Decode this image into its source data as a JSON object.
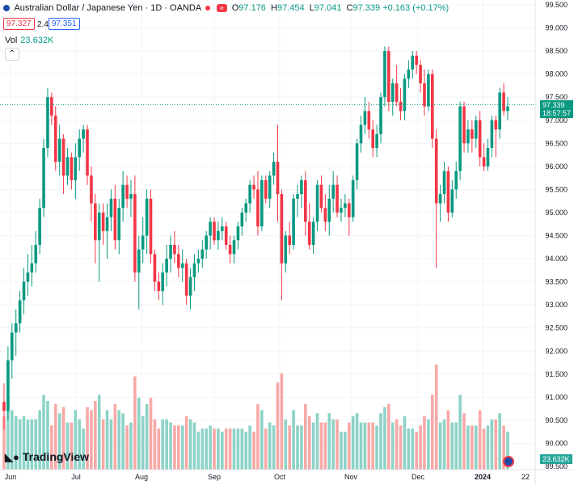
{
  "legend": {
    "symbol_title": "Australian Dollar / Japanese Yen · 1D · OANDA",
    "symbol_icon": "flag-icon",
    "badge": "≈",
    "open_label": "O",
    "open": "97.176",
    "high_label": "H",
    "high": "97.454",
    "low_label": "L",
    "low": "97.041",
    "close_label": "C",
    "close": "97.339",
    "change": "+0.163 (+0.17%)",
    "bid": "97.327",
    "spread": "2.4",
    "ask": "97.351"
  },
  "volume": {
    "label": "Vol",
    "value": "23.632K"
  },
  "price_axis": {
    "labels": [
      "99.500",
      "99.000",
      "98.500",
      "98.000",
      "97.500",
      "97.000",
      "96.500",
      "96.000",
      "95.500",
      "95.000",
      "94.500",
      "94.000",
      "93.500",
      "93.000",
      "92.500",
      "92.000",
      "91.500",
      "91.000",
      "90.500",
      "90.000",
      "89.500"
    ],
    "current_price": "97.339",
    "countdown": "18:57:57",
    "volume_tag": "23.632K"
  },
  "time_axis": {
    "labels": [
      "Jun",
      "Jul",
      "Aug",
      "Sep",
      "Oct",
      "Nov",
      "Dec",
      "2024",
      "22"
    ]
  },
  "logo": {
    "text": "TradingView",
    "icon": "tradingview-logo-icon"
  },
  "colors": {
    "up": "#089981",
    "down": "#f23645",
    "up_vol": "#8dd3c7",
    "down_vol": "#f7a9a7",
    "grid": "#f0f3fa"
  },
  "chart_data": {
    "type": "candlestick",
    "title": "Australian Dollar / Japanese Yen · 1D · OANDA",
    "ylim": [
      89.5,
      99.5
    ],
    "ohlc": [
      [
        90.9,
        91.3,
        90.3,
        90.7
      ],
      [
        90.7,
        92.1,
        90.5,
        91.8
      ],
      [
        91.8,
        92.6,
        91.4,
        92.4
      ],
      [
        92.4,
        92.9,
        91.9,
        92.6
      ],
      [
        92.6,
        93.3,
        92.4,
        93.1
      ],
      [
        93.1,
        93.8,
        92.8,
        93.5
      ],
      [
        93.5,
        94.1,
        93.2,
        93.7
      ],
      [
        93.7,
        94.3,
        93.4,
        93.9
      ],
      [
        93.9,
        94.6,
        93.7,
        94.3
      ],
      [
        94.3,
        95.3,
        94.1,
        95.1
      ],
      [
        95.1,
        96.6,
        94.9,
        96.4
      ],
      [
        96.4,
        97.7,
        96.2,
        97.5
      ],
      [
        97.5,
        97.6,
        96.9,
        97.1
      ],
      [
        97.1,
        97.3,
        95.9,
        96.1
      ],
      [
        96.1,
        96.9,
        95.8,
        96.6
      ],
      [
        96.6,
        96.7,
        95.4,
        95.8
      ],
      [
        95.8,
        96.4,
        95.6,
        96.2
      ],
      [
        96.2,
        96.3,
        95.5,
        95.7
      ],
      [
        95.7,
        96.5,
        95.3,
        96.2
      ],
      [
        96.2,
        96.8,
        95.9,
        96.6
      ],
      [
        96.6,
        96.9,
        96.3,
        96.8
      ],
      [
        96.8,
        96.9,
        95.6,
        95.8
      ],
      [
        95.8,
        96.0,
        94.8,
        95.2
      ],
      [
        95.2,
        95.4,
        93.9,
        94.4
      ],
      [
        94.4,
        95.2,
        93.5,
        95.0
      ],
      [
        95.0,
        95.2,
        94.3,
        94.6
      ],
      [
        94.6,
        95.2,
        94.0,
        94.9
      ],
      [
        94.9,
        95.5,
        94.6,
        95.3
      ],
      [
        95.3,
        95.6,
        94.2,
        94.4
      ],
      [
        94.4,
        95.3,
        94.1,
        95.1
      ],
      [
        95.1,
        95.9,
        94.8,
        95.6
      ],
      [
        95.6,
        95.8,
        95.1,
        95.3
      ],
      [
        95.3,
        95.7,
        94.9,
        95.4
      ],
      [
        95.4,
        95.8,
        93.5,
        93.7
      ],
      [
        93.7,
        94.5,
        92.9,
        94.2
      ],
      [
        94.2,
        94.9,
        93.9,
        94.5
      ],
      [
        94.5,
        95.5,
        94.1,
        95.3
      ],
      [
        95.3,
        95.5,
        93.9,
        94.1
      ],
      [
        94.1,
        94.2,
        93.3,
        93.5
      ],
      [
        93.5,
        93.7,
        93.1,
        93.3
      ],
      [
        93.3,
        93.9,
        93.0,
        93.7
      ],
      [
        93.7,
        94.3,
        93.4,
        94.0
      ],
      [
        94.0,
        94.5,
        93.7,
        94.3
      ],
      [
        94.3,
        94.6,
        93.9,
        94.1
      ],
      [
        94.1,
        94.3,
        93.6,
        93.8
      ],
      [
        93.8,
        94.2,
        93.5,
        93.9
      ],
      [
        93.9,
        94.0,
        93.0,
        93.2
      ],
      [
        93.2,
        93.8,
        92.9,
        93.6
      ],
      [
        93.6,
        94.1,
        93.3,
        93.9
      ],
      [
        93.9,
        94.2,
        93.7,
        94.0
      ],
      [
        94.0,
        94.4,
        93.8,
        94.2
      ],
      [
        94.2,
        94.6,
        94.0,
        94.5
      ],
      [
        94.5,
        94.9,
        94.2,
        94.8
      ],
      [
        94.8,
        94.9,
        94.3,
        94.4
      ],
      [
        94.4,
        94.8,
        94.2,
        94.6
      ],
      [
        94.6,
        94.9,
        94.4,
        94.7
      ],
      [
        94.7,
        94.8,
        94.2,
        94.3
      ],
      [
        94.3,
        94.5,
        93.9,
        94.1
      ],
      [
        94.1,
        94.5,
        93.9,
        94.4
      ],
      [
        94.4,
        94.8,
        94.2,
        94.7
      ],
      [
        94.7,
        95.1,
        94.5,
        95.0
      ],
      [
        95.0,
        95.3,
        94.8,
        95.2
      ],
      [
        95.2,
        95.7,
        95.0,
        95.6
      ],
      [
        95.6,
        95.8,
        95.3,
        95.5
      ],
      [
        95.5,
        95.9,
        94.5,
        94.7
      ],
      [
        94.7,
        95.8,
        94.6,
        95.7
      ],
      [
        95.7,
        95.8,
        95.2,
        95.3
      ],
      [
        95.3,
        95.9,
        95.1,
        95.8
      ],
      [
        95.8,
        96.3,
        95.6,
        96.1
      ],
      [
        96.1,
        96.9,
        94.8,
        95.4
      ],
      [
        95.4,
        95.5,
        93.1,
        93.9
      ],
      [
        93.9,
        94.6,
        93.7,
        94.5
      ],
      [
        94.5,
        94.8,
        94.1,
        94.3
      ],
      [
        94.3,
        95.4,
        94.2,
        95.3
      ],
      [
        95.3,
        95.6,
        94.9,
        95.4
      ],
      [
        95.4,
        95.8,
        95.1,
        95.7
      ],
      [
        95.7,
        95.9,
        94.5,
        94.8
      ],
      [
        94.8,
        95.2,
        94.2,
        94.3
      ],
      [
        94.3,
        94.9,
        94.1,
        94.8
      ],
      [
        94.8,
        95.7,
        94.6,
        95.6
      ],
      [
        95.6,
        95.8,
        95.0,
        95.1
      ],
      [
        95.1,
        95.4,
        94.6,
        94.8
      ],
      [
        94.8,
        95.6,
        94.5,
        95.3
      ],
      [
        95.3,
        95.9,
        95.0,
        95.6
      ],
      [
        95.6,
        95.8,
        94.9,
        95.0
      ],
      [
        95.0,
        95.3,
        94.8,
        95.1
      ],
      [
        95.1,
        95.4,
        94.9,
        95.2
      ],
      [
        95.2,
        95.3,
        94.5,
        94.9
      ],
      [
        94.9,
        95.8,
        94.8,
        95.7
      ],
      [
        95.7,
        96.6,
        95.5,
        96.5
      ],
      [
        96.5,
        97.1,
        96.3,
        96.9
      ],
      [
        96.9,
        97.5,
        96.7,
        97.2
      ],
      [
        97.2,
        97.4,
        96.6,
        96.8
      ],
      [
        96.8,
        97.0,
        96.2,
        96.4
      ],
      [
        96.4,
        96.9,
        96.2,
        96.7
      ],
      [
        96.7,
        97.6,
        96.5,
        97.5
      ],
      [
        97.5,
        98.6,
        97.3,
        98.5
      ],
      [
        98.5,
        98.6,
        97.2,
        97.4
      ],
      [
        97.4,
        97.9,
        97.1,
        97.8
      ],
      [
        97.8,
        98.2,
        97.3,
        97.4
      ],
      [
        97.4,
        97.7,
        97.0,
        97.2
      ],
      [
        97.2,
        98.0,
        97.0,
        97.9
      ],
      [
        97.9,
        98.3,
        97.7,
        98.1
      ],
      [
        98.1,
        98.5,
        97.9,
        98.4
      ],
      [
        98.4,
        98.5,
        98.0,
        98.2
      ],
      [
        98.2,
        98.3,
        97.6,
        97.8
      ],
      [
        97.8,
        98.1,
        97.1,
        97.3
      ],
      [
        97.3,
        98.1,
        97.2,
        98.0
      ],
      [
        98.0,
        98.1,
        96.4,
        96.6
      ],
      [
        96.6,
        96.8,
        93.8,
        95.2
      ],
      [
        95.2,
        95.6,
        94.8,
        95.4
      ],
      [
        95.4,
        96.1,
        95.2,
        95.9
      ],
      [
        95.9,
        96.0,
        94.8,
        95.0
      ],
      [
        95.0,
        95.7,
        94.9,
        95.5
      ],
      [
        95.5,
        96.1,
        95.3,
        95.9
      ],
      [
        95.9,
        97.4,
        95.7,
        97.3
      ],
      [
        97.3,
        97.4,
        96.3,
        96.5
      ],
      [
        96.5,
        97.0,
        96.3,
        96.8
      ],
      [
        96.8,
        97.0,
        96.3,
        96.6
      ],
      [
        96.6,
        97.1,
        96.4,
        97.0
      ],
      [
        97.0,
        97.2,
        96.0,
        96.2
      ],
      [
        96.2,
        96.5,
        95.9,
        96.0
      ],
      [
        96.0,
        96.6,
        95.9,
        96.4
      ],
      [
        96.4,
        97.1,
        96.2,
        97.0
      ],
      [
        97.0,
        97.1,
        96.2,
        96.8
      ],
      [
        96.8,
        97.7,
        96.6,
        97.6
      ],
      [
        97.6,
        97.8,
        97.1,
        97.2
      ],
      [
        97.2,
        97.5,
        97.0,
        97.3
      ]
    ],
    "volume_note": "relative bar heights scaled to the lower pane; last bar 23.632K"
  }
}
